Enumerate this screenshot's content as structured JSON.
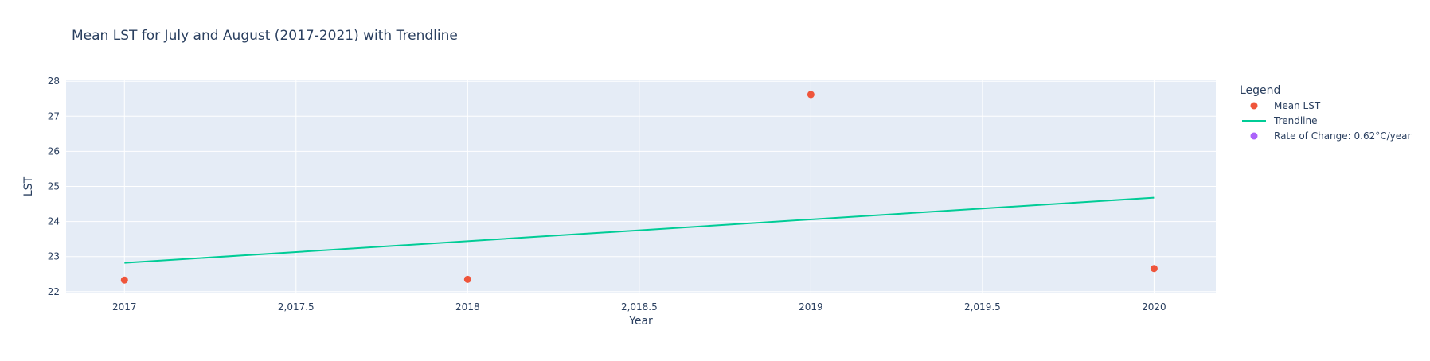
{
  "chart_data": {
    "type": "scatter",
    "title": "Mean LST for July and August (2017-2021) with Trendline",
    "xlabel": "Year",
    "ylabel": "LST",
    "xlim": [
      2016.83,
      2020.18
    ],
    "ylim": [
      21.95,
      28.05
    ],
    "x_ticks": [
      2017,
      2017.5,
      2018,
      2018.5,
      2019,
      2019.5,
      2020
    ],
    "x_tick_labels": [
      "2017",
      "2,017.5",
      "2018",
      "2,018.5",
      "2019",
      "2,019.5",
      "2020"
    ],
    "y_ticks": [
      22,
      23,
      24,
      25,
      26,
      27,
      28
    ],
    "y_tick_labels": [
      "22",
      "23",
      "24",
      "25",
      "26",
      "27",
      "28"
    ],
    "grid": true,
    "legend_title": "Legend",
    "legend_position": "right",
    "series": [
      {
        "name": "Mean LST",
        "mode": "markers",
        "color": "#EF553B",
        "x": [
          2017,
          2018,
          2019,
          2020
        ],
        "y": [
          22.33,
          22.35,
          27.62,
          22.66
        ]
      },
      {
        "name": "Trendline",
        "mode": "lines",
        "color": "#00CC96",
        "x": [
          2017,
          2020
        ],
        "y": [
          22.82,
          24.68
        ]
      },
      {
        "name": "Rate of Change: 0.62°C/year",
        "mode": "markers",
        "color": "#AB63FA",
        "x": [],
        "y": []
      }
    ]
  }
}
